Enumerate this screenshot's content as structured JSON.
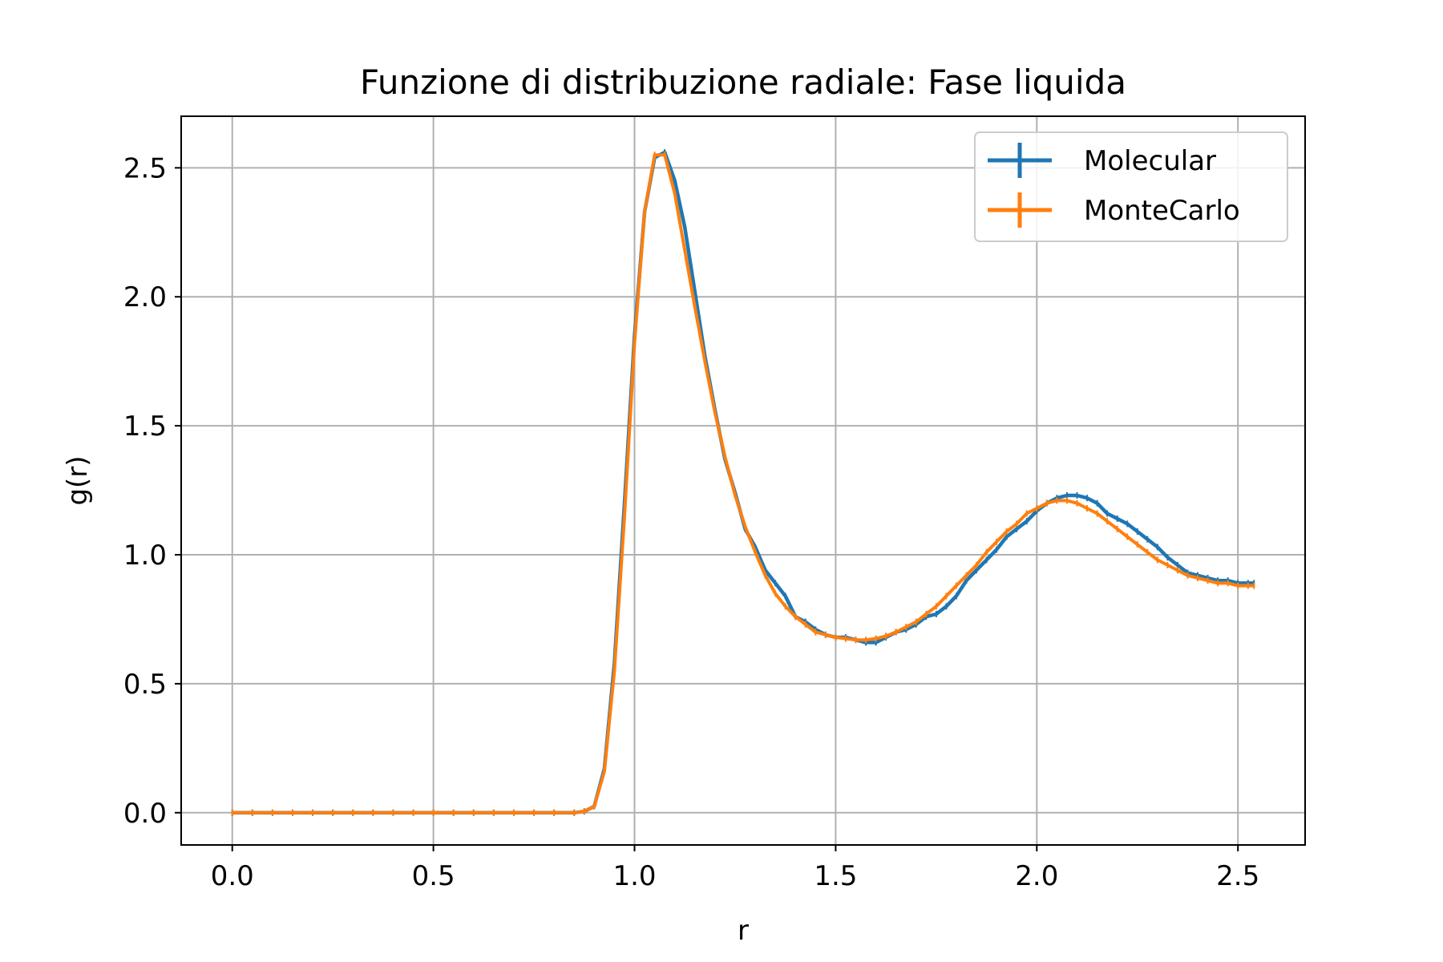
{
  "chart_data": {
    "type": "line",
    "title": "Funzione di distribuzione radiale: Fase liquida",
    "xlabel": "r",
    "ylabel": "g(r)",
    "xlim": [
      -0.127,
      2.667
    ],
    "ylim": [
      -0.125,
      2.7
    ],
    "grid": true,
    "legend_position": "top-right",
    "x_ticks": [
      "0.0",
      "0.5",
      "1.0",
      "1.5",
      "2.0",
      "2.5"
    ],
    "x_tick_values": [
      0.0,
      0.5,
      1.0,
      1.5,
      2.0,
      2.5
    ],
    "y_ticks": [
      "0.0",
      "0.5",
      "1.0",
      "1.5",
      "2.0",
      "2.5"
    ],
    "y_tick_values": [
      0.0,
      0.5,
      1.0,
      1.5,
      2.0,
      2.5
    ],
    "series": [
      {
        "name": "Molecular",
        "color": "#1f77b4",
        "x": [
          0.0,
          0.05,
          0.1,
          0.15,
          0.2,
          0.25,
          0.3,
          0.35,
          0.4,
          0.45,
          0.5,
          0.55,
          0.6,
          0.65,
          0.7,
          0.75,
          0.8,
          0.85,
          0.875,
          0.9,
          0.925,
          0.95,
          0.975,
          1.0,
          1.025,
          1.05,
          1.075,
          1.1,
          1.125,
          1.15,
          1.175,
          1.2,
          1.225,
          1.25,
          1.275,
          1.3,
          1.325,
          1.35,
          1.375,
          1.4,
          1.425,
          1.45,
          1.475,
          1.5,
          1.525,
          1.55,
          1.575,
          1.6,
          1.625,
          1.65,
          1.675,
          1.7,
          1.725,
          1.75,
          1.775,
          1.8,
          1.825,
          1.85,
          1.875,
          1.9,
          1.925,
          1.95,
          1.975,
          2.0,
          2.025,
          2.05,
          2.075,
          2.1,
          2.125,
          2.15,
          2.175,
          2.2,
          2.225,
          2.25,
          2.275,
          2.3,
          2.325,
          2.35,
          2.375,
          2.4,
          2.425,
          2.45,
          2.475,
          2.5,
          2.525,
          2.54
        ],
        "values": [
          0.0,
          0.0,
          0.0,
          0.0,
          0.0,
          0.0,
          0.0,
          0.0,
          0.0,
          0.0,
          0.0,
          0.0,
          0.0,
          0.0,
          0.0,
          0.0,
          0.0,
          0.0,
          0.005,
          0.025,
          0.17,
          0.58,
          1.2,
          1.85,
          2.33,
          2.54,
          2.56,
          2.45,
          2.27,
          2.02,
          1.77,
          1.56,
          1.37,
          1.24,
          1.1,
          1.03,
          0.94,
          0.89,
          0.84,
          0.76,
          0.74,
          0.71,
          0.69,
          0.68,
          0.68,
          0.67,
          0.66,
          0.66,
          0.68,
          0.7,
          0.71,
          0.73,
          0.76,
          0.77,
          0.8,
          0.84,
          0.9,
          0.94,
          0.98,
          1.02,
          1.07,
          1.1,
          1.13,
          1.17,
          1.2,
          1.22,
          1.23,
          1.23,
          1.22,
          1.2,
          1.16,
          1.14,
          1.12,
          1.09,
          1.06,
          1.03,
          0.99,
          0.96,
          0.93,
          0.92,
          0.91,
          0.9,
          0.9,
          0.89,
          0.89,
          0.89
        ]
      },
      {
        "name": "MonteCarlo",
        "color": "#ff7f0e",
        "x": [
          0.0,
          0.05,
          0.1,
          0.15,
          0.2,
          0.25,
          0.3,
          0.35,
          0.4,
          0.45,
          0.5,
          0.55,
          0.6,
          0.65,
          0.7,
          0.75,
          0.8,
          0.85,
          0.875,
          0.9,
          0.925,
          0.95,
          0.975,
          1.0,
          1.025,
          1.05,
          1.075,
          1.1,
          1.125,
          1.15,
          1.175,
          1.2,
          1.225,
          1.25,
          1.275,
          1.3,
          1.325,
          1.35,
          1.375,
          1.4,
          1.425,
          1.45,
          1.475,
          1.5,
          1.525,
          1.55,
          1.575,
          1.6,
          1.625,
          1.65,
          1.675,
          1.7,
          1.725,
          1.75,
          1.775,
          1.8,
          1.825,
          1.85,
          1.875,
          1.9,
          1.925,
          1.95,
          1.975,
          2.0,
          2.025,
          2.05,
          2.075,
          2.1,
          2.125,
          2.15,
          2.175,
          2.2,
          2.225,
          2.25,
          2.275,
          2.3,
          2.325,
          2.35,
          2.375,
          2.4,
          2.425,
          2.45,
          2.475,
          2.5,
          2.525,
          2.54
        ],
        "values": [
          0.0,
          0.0,
          0.0,
          0.0,
          0.0,
          0.0,
          0.0,
          0.0,
          0.0,
          0.0,
          0.0,
          0.0,
          0.0,
          0.0,
          0.0,
          0.0,
          0.0,
          0.0,
          0.005,
          0.025,
          0.16,
          0.55,
          1.15,
          1.82,
          2.33,
          2.55,
          2.55,
          2.4,
          2.18,
          1.96,
          1.75,
          1.55,
          1.38,
          1.23,
          1.11,
          1.01,
          0.92,
          0.85,
          0.8,
          0.76,
          0.73,
          0.7,
          0.69,
          0.68,
          0.675,
          0.67,
          0.67,
          0.675,
          0.685,
          0.7,
          0.72,
          0.74,
          0.77,
          0.8,
          0.84,
          0.88,
          0.92,
          0.96,
          1.01,
          1.05,
          1.09,
          1.12,
          1.16,
          1.18,
          1.2,
          1.21,
          1.21,
          1.2,
          1.18,
          1.16,
          1.13,
          1.1,
          1.07,
          1.04,
          1.01,
          0.98,
          0.96,
          0.94,
          0.92,
          0.91,
          0.9,
          0.89,
          0.89,
          0.88,
          0.88,
          0.88
        ]
      }
    ]
  }
}
